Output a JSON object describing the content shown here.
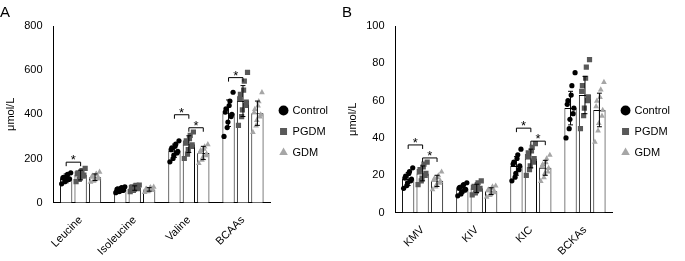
{
  "chart_data": [
    {
      "type": "bar",
      "title": "A",
      "y_label": "μmol/L",
      "categories": [
        "Leucine",
        "Isoleucine",
        "Valine",
        "BCAAs"
      ],
      "ylim": [
        0,
        800
      ],
      "yticks": [
        0,
        200,
        400,
        600,
        800
      ],
      "grid": false,
      "legend": "right",
      "series": [
        {
          "name": "Control",
          "color": "#000000",
          "marker": "circle",
          "values": [
            110,
            58,
            235,
            405
          ],
          "errors": [
            20,
            9,
            30,
            60
          ],
          "points": [
            [
              85,
              95,
              100,
              105,
              108,
              112,
              115,
              120,
              128,
              135
            ],
            [
              45,
              50,
              52,
              55,
              58,
              60,
              62,
              65,
              68,
              72
            ],
            [
              185,
              200,
              215,
              225,
              232,
              240,
              248,
              255,
              265,
              280
            ],
            [
              300,
              340,
              365,
              390,
              400,
              410,
              425,
              440,
              460,
              500
            ]
          ]
        },
        {
          "name": "PGDM",
          "color": "#595959",
          "marker": "square",
          "values": [
            125,
            66,
            265,
            460
          ],
          "errors": [
            22,
            10,
            38,
            70
          ],
          "points": [
            [
              95,
              105,
              115,
              120,
              125,
              130,
              135,
              140,
              145,
              155
            ],
            [
              50,
              55,
              60,
              63,
              66,
              68,
              72,
              75,
              78,
              80
            ],
            [
              200,
              220,
              240,
              255,
              262,
              270,
              280,
              290,
              305,
              320
            ],
            [
              350,
              390,
              420,
              440,
              455,
              470,
              490,
              510,
              550,
              590
            ]
          ]
        },
        {
          "name": "GDM",
          "color": "#a6a6a6",
          "marker": "triangle",
          "values": [
            115,
            60,
            225,
            405
          ],
          "errors": [
            15,
            8,
            30,
            55
          ],
          "points": [
            [
              95,
              100,
              105,
              110,
              115,
              118,
              122,
              128,
              132,
              140
            ],
            [
              48,
              52,
              55,
              58,
              60,
              62,
              64,
              66,
              70,
              72
            ],
            [
              180,
              195,
              205,
              215,
              222,
              230,
              238,
              245,
              255,
              265
            ],
            [
              320,
              350,
              375,
              390,
              400,
              410,
              425,
              440,
              460,
              500
            ]
          ]
        }
      ],
      "annotations": [
        {
          "category": "Leucine",
          "from": "Control",
          "to": "PGDM",
          "text": "*"
        },
        {
          "category": "Valine",
          "from": "PGDM",
          "to": "GDM",
          "text": "*"
        },
        {
          "category": "Valine",
          "from": "Control",
          "to": "PGDM",
          "text": "*"
        },
        {
          "category": "BCAAs",
          "from": "Control",
          "to": "PGDM",
          "text": "*"
        }
      ]
    },
    {
      "type": "bar",
      "title": "B",
      "y_label": "μmol/L",
      "categories": [
        "KMV",
        "KIV",
        "KIC",
        "BCKAs"
      ],
      "ylim": [
        0,
        100
      ],
      "yticks": [
        0,
        20,
        40,
        60,
        80,
        100
      ],
      "grid": false,
      "legend": "right",
      "series": [
        {
          "name": "Control",
          "color": "#000000",
          "marker": "circle",
          "values": [
            18,
            12.5,
            25,
            56
          ],
          "errors": [
            3.5,
            2,
            5,
            9
          ],
          "points": [
            [
              13,
              14.5,
              16,
              17,
              18,
              18.5,
              19.5,
              21,
              22,
              24
            ],
            [
              9,
              10,
              11,
              12,
              12.5,
              13,
              13.5,
              14.5,
              15,
              16
            ],
            [
              17,
              19,
              21,
              23,
              25,
              26,
              27,
              29,
              31,
              34
            ],
            [
              40,
              45,
              50,
              53,
              56,
              58,
              60,
              63,
              68,
              75
            ]
          ]
        },
        {
          "name": "PGDM",
          "color": "#595959",
          "marker": "square",
          "values": [
            21,
            13,
            29,
            63
          ],
          "errors": [
            4,
            2.2,
            5,
            10
          ],
          "points": [
            [
              15,
              17,
              18.5,
              20,
              21,
              22,
              23,
              24.5,
              26,
              27
            ],
            [
              9.5,
              10.5,
              11.5,
              12.5,
              13,
              13.5,
              14,
              15,
              16,
              17
            ],
            [
              20,
              23,
              25,
              27,
              29,
              30,
              32,
              33,
              35,
              37
            ],
            [
              45,
              52,
              56,
              60,
              62,
              65,
              68,
              72,
              78,
              82
            ]
          ]
        },
        {
          "name": "GDM",
          "color": "#a6a6a6",
          "marker": "triangle",
          "values": [
            17,
            11.5,
            24,
            55
          ],
          "errors": [
            3,
            1.8,
            4,
            9
          ],
          "points": [
            [
              12.5,
              14,
              15,
              16,
              17,
              17.5,
              18.5,
              19,
              20,
              22
            ],
            [
              8.5,
              9.5,
              10,
              11,
              11.5,
              12,
              12.5,
              13,
              14,
              14.5
            ],
            [
              17,
              19,
              21,
              22,
              24,
              25,
              26,
              27,
              29,
              31
            ],
            [
              38,
              44,
              48,
              52,
              55,
              57,
              60,
              62,
              66,
              70
            ]
          ]
        }
      ],
      "annotations": [
        {
          "category": "KMV",
          "from": "PGDM",
          "to": "GDM",
          "text": "*"
        },
        {
          "category": "KMV",
          "from": "Control",
          "to": "PGDM",
          "text": "*"
        },
        {
          "category": "KIC",
          "from": "PGDM",
          "to": "GDM",
          "text": "*"
        },
        {
          "category": "KIC",
          "from": "Control",
          "to": "PGDM",
          "text": "*"
        }
      ]
    }
  ]
}
